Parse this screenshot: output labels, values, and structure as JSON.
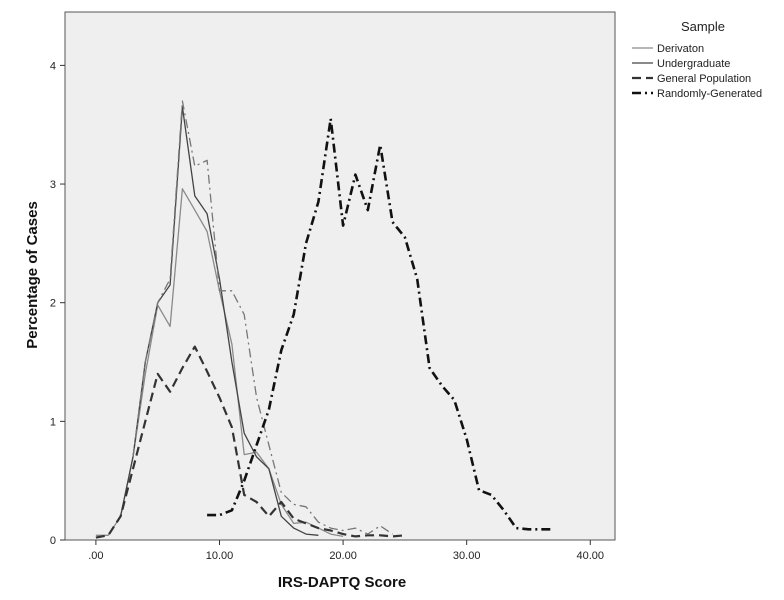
{
  "chart_data": {
    "type": "line",
    "title": "",
    "xlabel": "IRS-DAPTQ Score",
    "ylabel": "Percentage of Cases",
    "xlim": [
      -2.5,
      42
    ],
    "ylim": [
      0,
      4.45
    ],
    "xticks": [
      0,
      10,
      20,
      30,
      40
    ],
    "xtick_labels": [
      ".00",
      "10.00",
      "20.00",
      "30.00",
      "40.00"
    ],
    "yticks": [
      0,
      1,
      2,
      3,
      4
    ],
    "ytick_labels": [
      "0",
      "1",
      "2",
      "3",
      "4"
    ],
    "grid": false,
    "plot_background": "#efefef",
    "legend": {
      "title": "Sample",
      "position": "right"
    },
    "series": [
      {
        "name": "Derivaton",
        "color": "#8a8a8a",
        "dash": "solid",
        "points": [
          [
            0,
            0.04
          ],
          [
            1,
            0.04
          ],
          [
            2,
            0.2
          ],
          [
            3,
            0.7
          ],
          [
            4,
            1.4
          ],
          [
            5,
            1.98
          ],
          [
            6,
            1.8
          ],
          [
            7,
            2.96
          ],
          [
            8,
            2.78
          ],
          [
            9,
            2.6
          ],
          [
            10,
            2.1
          ],
          [
            11,
            1.65
          ],
          [
            12,
            0.72
          ],
          [
            13,
            0.74
          ],
          [
            14,
            0.6
          ],
          [
            15,
            0.3
          ],
          [
            16,
            0.14
          ],
          [
            17,
            0.15
          ],
          [
            18,
            0.1
          ],
          [
            19,
            0.05
          ],
          [
            20,
            0.03
          ]
        ]
      },
      {
        "name": "Undergraduate",
        "color": "#444444",
        "dash": "solid",
        "points": [
          [
            2,
            0.2
          ],
          [
            3,
            0.7
          ],
          [
            4,
            1.5
          ],
          [
            5,
            2.0
          ],
          [
            6,
            2.15
          ],
          [
            7,
            3.65
          ],
          [
            8,
            2.9
          ],
          [
            9,
            2.75
          ],
          [
            10,
            2.2
          ],
          [
            11,
            1.5
          ],
          [
            12,
            0.9
          ],
          [
            13,
            0.7
          ],
          [
            14,
            0.6
          ],
          [
            15,
            0.2
          ],
          [
            16,
            0.1
          ],
          [
            17,
            0.05
          ],
          [
            18,
            0.04
          ]
        ]
      },
      {
        "name": "General Population",
        "color": "#333333",
        "dash": "dash",
        "points": [
          [
            0,
            0.02
          ],
          [
            1,
            0.04
          ],
          [
            2,
            0.2
          ],
          [
            3,
            0.6
          ],
          [
            4,
            1.0
          ],
          [
            5,
            1.4
          ],
          [
            6,
            1.25
          ],
          [
            7,
            1.45
          ],
          [
            8,
            1.63
          ],
          [
            9,
            1.42
          ],
          [
            10,
            1.2
          ],
          [
            11,
            0.95
          ],
          [
            12,
            0.38
          ],
          [
            13,
            0.32
          ],
          [
            14,
            0.2
          ],
          [
            15,
            0.32
          ],
          [
            16,
            0.18
          ],
          [
            17,
            0.14
          ],
          [
            18,
            0.1
          ],
          [
            19,
            0.08
          ],
          [
            20,
            0.05
          ],
          [
            21,
            0.03
          ],
          [
            22,
            0.04
          ],
          [
            23,
            0.04
          ],
          [
            24,
            0.03
          ],
          [
            25,
            0.04
          ]
        ]
      },
      {
        "name": "",
        "color": "#777777",
        "dash": "dashdot",
        "points": [
          [
            3,
            0.7
          ],
          [
            4,
            1.5
          ],
          [
            5,
            2.0
          ],
          [
            6,
            2.2
          ],
          [
            7,
            3.7
          ],
          [
            8,
            3.15
          ],
          [
            9,
            3.2
          ],
          [
            10,
            2.1
          ],
          [
            11,
            2.1
          ],
          [
            12,
            1.9
          ],
          [
            13,
            1.2
          ],
          [
            14,
            0.8
          ],
          [
            15,
            0.4
          ],
          [
            16,
            0.3
          ],
          [
            17,
            0.28
          ],
          [
            18,
            0.15
          ],
          [
            19,
            0.1
          ],
          [
            20,
            0.08
          ],
          [
            21,
            0.1
          ],
          [
            22,
            0.05
          ],
          [
            23,
            0.12
          ],
          [
            24,
            0.05
          ]
        ]
      },
      {
        "name": "Randomly-Generated",
        "color": "#111111",
        "dash": "dashdot",
        "points": [
          [
            9,
            0.21
          ],
          [
            10,
            0.21
          ],
          [
            11,
            0.25
          ],
          [
            12,
            0.5
          ],
          [
            13,
            0.8
          ],
          [
            14,
            1.1
          ],
          [
            15,
            1.6
          ],
          [
            16,
            1.9
          ],
          [
            17,
            2.5
          ],
          [
            18,
            2.85
          ],
          [
            19,
            3.55
          ],
          [
            20,
            2.65
          ],
          [
            21,
            3.08
          ],
          [
            22,
            2.78
          ],
          [
            23,
            3.33
          ],
          [
            24,
            2.68
          ],
          [
            25,
            2.55
          ],
          [
            26,
            2.2
          ],
          [
            27,
            1.45
          ],
          [
            28,
            1.3
          ],
          [
            29,
            1.18
          ],
          [
            30,
            0.85
          ],
          [
            31,
            0.42
          ],
          [
            32,
            0.38
          ],
          [
            33,
            0.25
          ],
          [
            34,
            0.1
          ],
          [
            35,
            0.09
          ],
          [
            36,
            0.09
          ],
          [
            37,
            0.09
          ]
        ]
      }
    ]
  }
}
